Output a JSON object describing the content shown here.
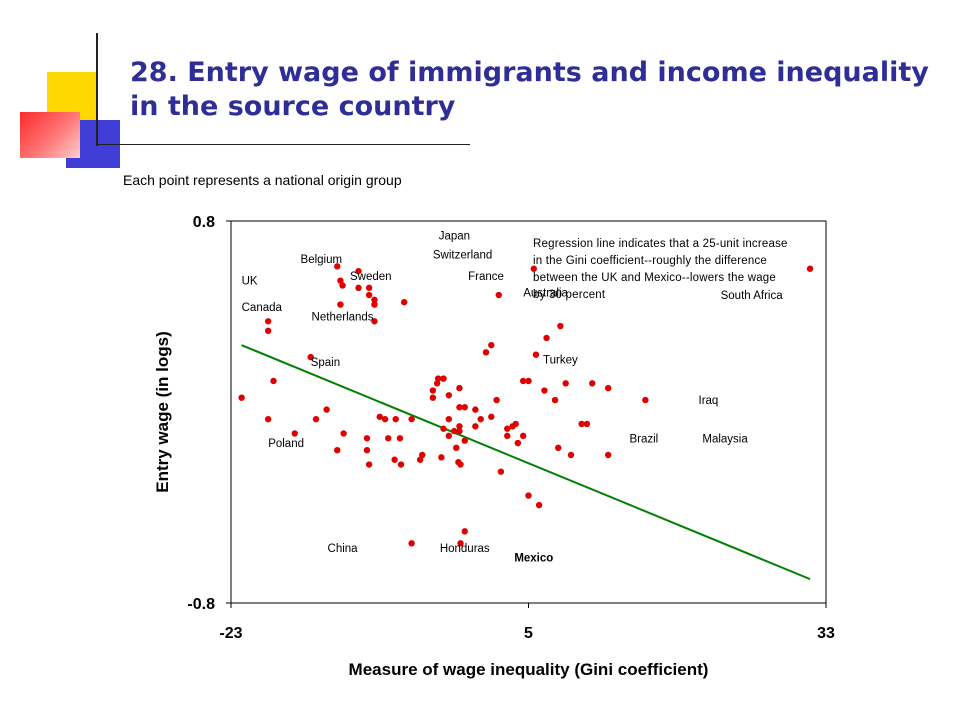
{
  "slide": {
    "title": "28. Entry wage of immigrants and income inequality in the source country",
    "subtitle": "Each point represents a national origin group",
    "colors": {
      "title": "#2e2e96",
      "accent_yellow": "#ffd800",
      "accent_blue": "#3f3fd8",
      "accent_red": "#ff3333"
    }
  },
  "chart_data": {
    "type": "scatter",
    "title": "",
    "xlabel": "Measure of wage inequality (Gini coefficient)",
    "ylabel": "Entry wage (in logs)",
    "xlim": [
      -23,
      33
    ],
    "ylim": [
      -0.8,
      0.8
    ],
    "xticks": [
      "-23",
      "5",
      "33"
    ],
    "yticks": [
      "0.8",
      "-0.8"
    ],
    "grid": false,
    "point_color": "#e00000",
    "line_color": "#008000",
    "annotation": [
      "Regression line indicates that a 25-unit increase",
      "in the Gini coefficient--roughly the difference",
      "between the UK and Mexico--lowers the wage",
      "by 30 percent"
    ],
    "regression_line": [
      [
        -22,
        0.28
      ],
      [
        31.5,
        -0.7
      ]
    ],
    "points": [
      [
        -22,
        0.06
      ],
      [
        -19.5,
        -0.03
      ],
      [
        -19.5,
        0.38
      ],
      [
        -19.5,
        0.34
      ],
      [
        -19,
        0.13
      ],
      [
        -17,
        -0.09
      ],
      [
        -15.5,
        0.23
      ],
      [
        -15,
        -0.03
      ],
      [
        -14,
        0.01
      ],
      [
        -13,
        0.61
      ],
      [
        -13,
        -0.16
      ],
      [
        -12.7,
        0.55
      ],
      [
        -12.7,
        0.45
      ],
      [
        -12.4,
        -0.09
      ],
      [
        -11,
        0.52
      ],
      [
        -10.2,
        -0.16
      ],
      [
        -10,
        0.52
      ],
      [
        -10,
        0.49
      ],
      [
        -10.2,
        -0.11
      ],
      [
        -10,
        -0.22
      ],
      [
        -9.5,
        0.47
      ],
      [
        -9.5,
        0.45
      ],
      [
        -9.5,
        0.38
      ],
      [
        -9,
        -0.02
      ],
      [
        -8.5,
        -0.03
      ],
      [
        -8.2,
        -0.11
      ],
      [
        -7.6,
        -0.2
      ],
      [
        -7.5,
        -0.03
      ],
      [
        -7.1,
        -0.11
      ],
      [
        -7,
        -0.22
      ],
      [
        -6.7,
        0.46
      ],
      [
        -6,
        -0.55
      ],
      [
        -6,
        -0.03
      ],
      [
        -5.2,
        -0.2
      ],
      [
        -5,
        -0.18
      ],
      [
        -4,
        0.09
      ],
      [
        -4,
        0.06
      ],
      [
        -3.6,
        0.12
      ],
      [
        -3.5,
        0.14
      ],
      [
        -3.2,
        -0.19
      ],
      [
        -2.5,
        -0.03
      ],
      [
        -2.5,
        0.07
      ],
      [
        -2.5,
        -0.1
      ],
      [
        -2,
        -0.08
      ],
      [
        -1.5,
        -0.08
      ],
      [
        -1.5,
        0.1
      ],
      [
        -1.8,
        -0.15
      ],
      [
        -1.6,
        -0.21
      ],
      [
        -1.5,
        -0.06
      ],
      [
        -1.5,
        0.02
      ],
      [
        -1.4,
        -0.22
      ],
      [
        -1.4,
        -0.55
      ],
      [
        -1,
        -0.12
      ],
      [
        -1,
        0.02
      ],
      [
        -1,
        -0.5
      ],
      [
        0,
        -0.06
      ],
      [
        0,
        0.01
      ],
      [
        0.5,
        -0.03
      ],
      [
        1,
        0.25
      ],
      [
        1.5,
        -0.02
      ],
      [
        1.5,
        0.28
      ],
      [
        2,
        0.05
      ],
      [
        2.2,
        0.49
      ],
      [
        2.4,
        -0.25
      ],
      [
        3,
        -0.07
      ],
      [
        3,
        -0.1
      ],
      [
        3.5,
        -0.06
      ],
      [
        3.8,
        -0.05
      ],
      [
        4,
        -0.13
      ],
      [
        4,
        -0.13
      ],
      [
        4.5,
        -0.1
      ],
      [
        4.5,
        0.13
      ],
      [
        5,
        0.13
      ],
      [
        5,
        -0.35
      ],
      [
        5.5,
        0.6
      ],
      [
        5.7,
        0.24
      ],
      [
        6,
        -0.39
      ],
      [
        6.5,
        0.09
      ],
      [
        6.7,
        0.31
      ],
      [
        7.5,
        0.05
      ],
      [
        7.8,
        -0.15
      ],
      [
        8,
        0.36
      ],
      [
        8.5,
        0.12
      ],
      [
        9,
        -0.18
      ],
      [
        10,
        -0.05
      ],
      [
        10.5,
        -0.05
      ],
      [
        11,
        0.12
      ],
      [
        12.5,
        -0.18
      ],
      [
        12.5,
        0.1
      ],
      [
        16,
        0.05
      ],
      [
        31.5,
        0.6
      ],
      [
        -3,
        0.14
      ],
      [
        -3,
        -0.07
      ],
      [
        -11,
        0.59
      ],
      [
        -12.5,
        0.53
      ]
    ],
    "labels": [
      {
        "text": "Japan",
        "x": -0.5,
        "y": 0.74,
        "anchor": "end"
      },
      {
        "text": "Switzerland",
        "x": -4,
        "y": 0.66,
        "anchor": "start"
      },
      {
        "text": "Belgium",
        "x": -14.5,
        "y": 0.64,
        "anchor": "middle"
      },
      {
        "text": "Sweden",
        "x": -11.8,
        "y": 0.57,
        "anchor": "start"
      },
      {
        "text": "France",
        "x": 1,
        "y": 0.57,
        "anchor": "middle"
      },
      {
        "text": "UK",
        "x": -22,
        "y": 0.55,
        "anchor": "start"
      },
      {
        "text": "Australia",
        "x": 4.5,
        "y": 0.5,
        "anchor": "start"
      },
      {
        "text": "South Africa",
        "x": 26,
        "y": 0.49,
        "anchor": "middle"
      },
      {
        "text": "Canada",
        "x": -22,
        "y": 0.44,
        "anchor": "start"
      },
      {
        "text": "Netherlands",
        "x": -12.5,
        "y": 0.4,
        "anchor": "middle"
      },
      {
        "text": "Spain",
        "x": -15.5,
        "y": 0.21,
        "anchor": "start"
      },
      {
        "text": "Turkey",
        "x": 8,
        "y": 0.22,
        "anchor": "middle"
      },
      {
        "text": "Iraq",
        "x": 21,
        "y": 0.05,
        "anchor": "start"
      },
      {
        "text": "Poland",
        "x": -19.5,
        "y": -0.13,
        "anchor": "start"
      },
      {
        "text": "Brazil",
        "x": 14.5,
        "y": -0.11,
        "anchor": "start"
      },
      {
        "text": "Malaysia",
        "x": 23.5,
        "y": -0.11,
        "anchor": "middle"
      },
      {
        "text": "China",
        "x": -12.5,
        "y": -0.57,
        "anchor": "middle"
      },
      {
        "text": "Honduras",
        "x": -1,
        "y": -0.57,
        "anchor": "middle"
      },
      {
        "text": "Mexico",
        "x": 5.5,
        "y": -0.61,
        "anchor": "middle",
        "bold": true
      }
    ]
  }
}
